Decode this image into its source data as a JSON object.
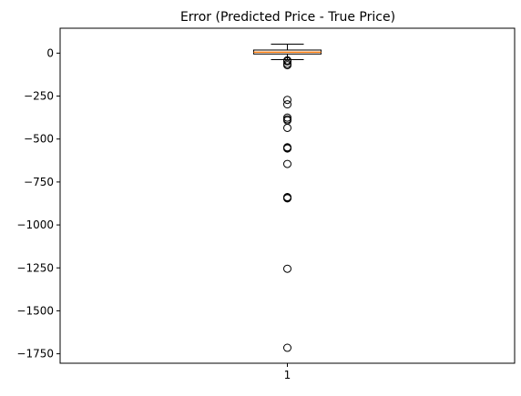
{
  "chart_data": {
    "type": "box",
    "title": "Error (Predicted Price - True Price)",
    "xlabel": "",
    "ylabel": "",
    "categories": [
      "1"
    ],
    "ylim": [
      -1805,
      145
    ],
    "xlim": [
      0.5,
      1.5
    ],
    "yticks": [
      0,
      -250,
      -500,
      -750,
      -1000,
      -1250,
      -1500,
      -1750
    ],
    "ytick_labels": [
      "0",
      "−250",
      "−500",
      "−750",
      "−1000",
      "−1250",
      "−1500",
      "−1750"
    ],
    "grid": false,
    "box": {
      "whisker_high": 52,
      "q3": 18,
      "median": 5,
      "q1": -5,
      "whisker_low": -38,
      "outliers": [
        -42,
        -48,
        -62,
        -70,
        -272,
        -298,
        -375,
        -385,
        -392,
        -435,
        -548,
        -552,
        -555,
        -645,
        -838,
        -842,
        -845,
        -1255,
        -1715
      ]
    },
    "colors": {
      "box_edge": "#000000",
      "median": "#ff7f0e",
      "box_fill": "none",
      "outlier_edge": "#000000"
    }
  }
}
